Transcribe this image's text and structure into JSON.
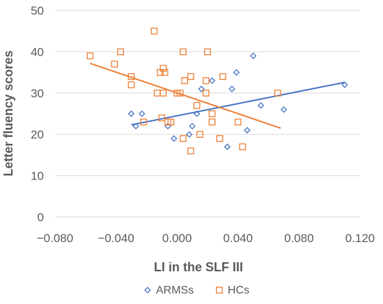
{
  "chart_data": {
    "type": "scatter",
    "xlabel": "LI in the SLF III",
    "ylabel": "Letter fluency scores",
    "xlim": [
      -0.08,
      0.12
    ],
    "ylim": [
      0,
      50
    ],
    "x_ticks": [
      -0.08,
      -0.04,
      0.0,
      0.04,
      0.08,
      0.12
    ],
    "x_tick_labels": [
      "−0.080",
      "−0.040",
      "0.000",
      "0.040",
      "0.080",
      "0.120"
    ],
    "y_ticks": [
      0,
      10,
      20,
      30,
      40,
      50
    ],
    "y_tick_labels": [
      "0",
      "10",
      "20",
      "30",
      "40",
      "50"
    ],
    "grid": "horizontal",
    "legend_position": "bottom",
    "series": [
      {
        "name": "ARMSs",
        "marker": "diamond",
        "color": "#4472C4",
        "points": [
          [
            -0.03,
            25
          ],
          [
            -0.027,
            22
          ],
          [
            -0.023,
            25
          ],
          [
            -0.006,
            22
          ],
          [
            -0.002,
            19
          ],
          [
            0.008,
            20
          ],
          [
            0.01,
            22
          ],
          [
            0.013,
            25
          ],
          [
            0.016,
            31
          ],
          [
            0.023,
            33
          ],
          [
            0.033,
            17
          ],
          [
            0.036,
            31
          ],
          [
            0.039,
            35
          ],
          [
            0.046,
            21
          ],
          [
            0.05,
            39
          ],
          [
            0.055,
            27
          ],
          [
            0.07,
            26
          ],
          [
            0.11,
            32
          ]
        ],
        "trendline": [
          [
            -0.03,
            22.3
          ],
          [
            0.11,
            32.6
          ]
        ]
      },
      {
        "name": "HCs",
        "marker": "square",
        "color": "#ED7D31",
        "points": [
          [
            -0.057,
            39
          ],
          [
            -0.041,
            37
          ],
          [
            -0.037,
            40
          ],
          [
            -0.03,
            34
          ],
          [
            -0.03,
            32
          ],
          [
            -0.022,
            23
          ],
          [
            -0.015,
            45
          ],
          [
            -0.013,
            30
          ],
          [
            -0.011,
            35
          ],
          [
            -0.01,
            24
          ],
          [
            -0.009,
            36
          ],
          [
            -0.009,
            30
          ],
          [
            -0.008,
            35
          ],
          [
            -0.006,
            23
          ],
          [
            -0.004,
            23
          ],
          [
            0.0,
            30
          ],
          [
            0.002,
            30
          ],
          [
            0.004,
            40
          ],
          [
            0.004,
            19
          ],
          [
            0.005,
            33
          ],
          [
            0.009,
            34
          ],
          [
            0.009,
            16
          ],
          [
            0.013,
            27
          ],
          [
            0.015,
            20
          ],
          [
            0.019,
            33
          ],
          [
            0.019,
            30
          ],
          [
            0.02,
            40
          ],
          [
            0.023,
            23
          ],
          [
            0.023,
            25
          ],
          [
            0.028,
            19
          ],
          [
            0.03,
            34
          ],
          [
            0.04,
            23
          ],
          [
            0.043,
            17
          ],
          [
            0.066,
            30
          ]
        ],
        "trendline": [
          [
            -0.057,
            37.2
          ],
          [
            0.068,
            21.5
          ]
        ]
      }
    ]
  }
}
